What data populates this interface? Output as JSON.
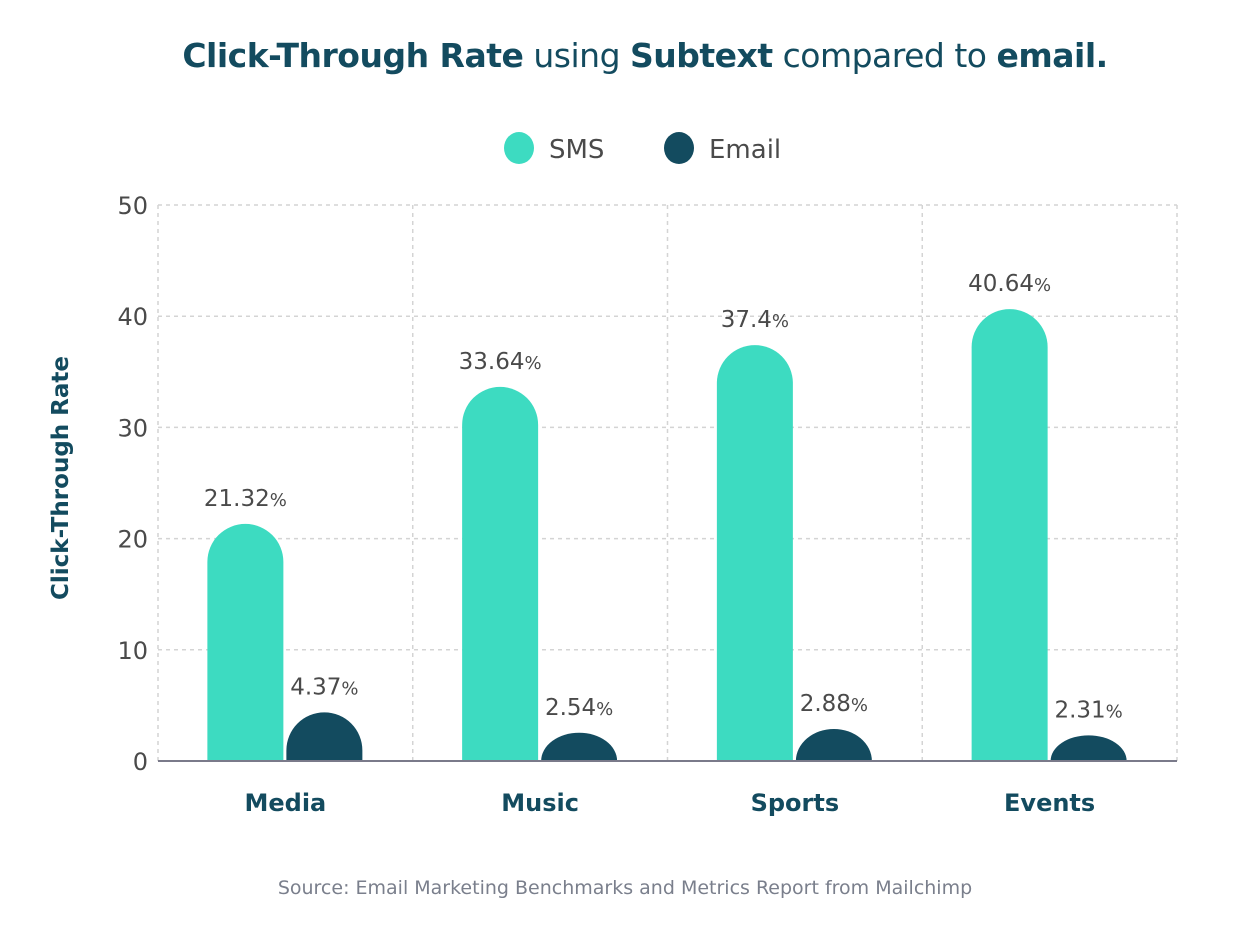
{
  "chart_data": {
    "type": "bar",
    "title_segments": [
      {
        "text": "Click-Through Rate",
        "bold": true
      },
      {
        "text": " using ",
        "bold": false
      },
      {
        "text": "Subtext",
        "bold": true
      },
      {
        "text": " compared to ",
        "bold": false
      },
      {
        "text": "email.",
        "bold": true
      }
    ],
    "categories": [
      "Media",
      "Music",
      "Sports",
      "Events"
    ],
    "series": [
      {
        "name": "SMS",
        "color": "#3ddbc1",
        "values": [
          21.32,
          33.64,
          37.4,
          40.64
        ],
        "labels": [
          "21.32",
          "33.64",
          "37.4",
          "40.64"
        ]
      },
      {
        "name": "Email",
        "color": "#134b5f",
        "values": [
          4.37,
          2.54,
          2.88,
          2.31
        ],
        "labels": [
          "4.37",
          "2.54",
          "2.88",
          "2.31"
        ]
      }
    ],
    "label_suffix": "%",
    "ylabel": "Click-Through Rate",
    "xlabel": "",
    "ylim": [
      0,
      50
    ],
    "yticks": [
      0,
      10,
      20,
      30,
      40,
      50
    ],
    "grid": true,
    "legend_position": "top-center",
    "source": "Source: Email Marketing Benchmarks and Metrics Report from Mailchimp"
  }
}
